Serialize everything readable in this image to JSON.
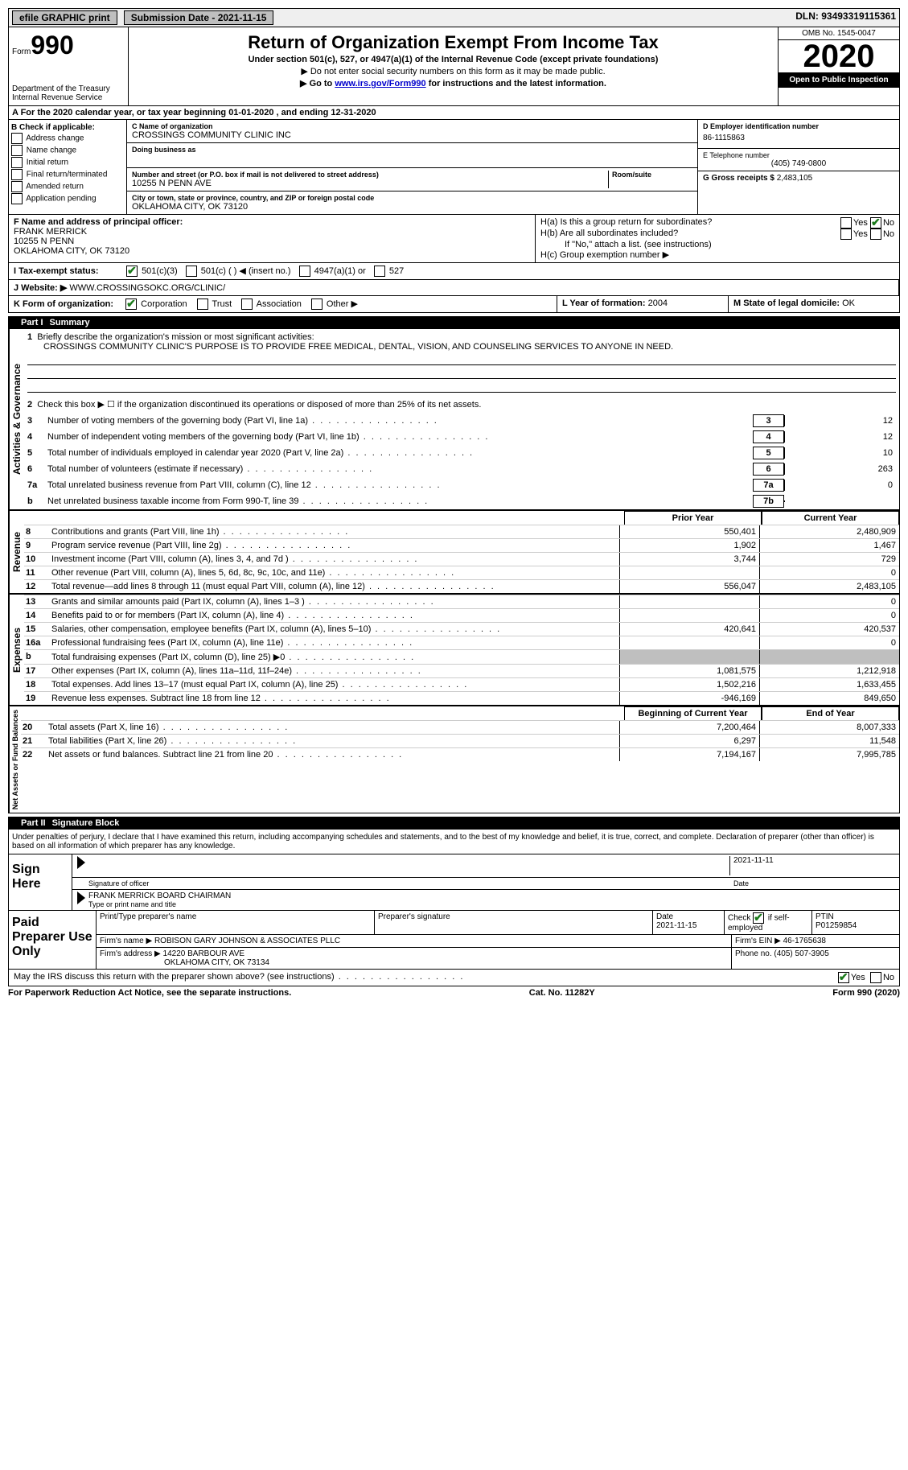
{
  "topbar": {
    "efile": "efile GRAPHIC print",
    "submission": "Submission Date - 2021-11-15",
    "dln": "DLN: 93493319115361"
  },
  "header": {
    "form": "Form",
    "num": "990",
    "dept": "Department of the Treasury\nInternal Revenue Service",
    "title": "Return of Organization Exempt From Income Tax",
    "subtitle": "Under section 501(c), 527, or 4947(a)(1) of the Internal Revenue Code (except private foundations)",
    "instr1": "▶ Do not enter social security numbers on this form as it may be made public.",
    "instr2_pre": "▶ Go to ",
    "instr2_link": "www.irs.gov/Form990",
    "instr2_post": " for instructions and the latest information.",
    "omb": "OMB No. 1545-0047",
    "year": "2020",
    "open": "Open to Public Inspection"
  },
  "row_a": "A For the 2020 calendar year, or tax year beginning 01-01-2020    , and ending 12-31-2020",
  "col_b": {
    "title": "B Check if applicable:",
    "items": [
      "Address change",
      "Name change",
      "Initial return",
      "Final return/terminated",
      "Amended return",
      "Application pending"
    ]
  },
  "col_c": {
    "name_label": "C Name of organization",
    "name": "CROSSINGS COMMUNITY CLINIC INC",
    "dba_label": "Doing business as",
    "dba": "",
    "addr_label": "Number and street (or P.O. box if mail is not delivered to street address)",
    "room_label": "Room/suite",
    "addr": "10255 N PENN AVE",
    "city_label": "City or town, state or province, country, and ZIP or foreign postal code",
    "city": "OKLAHOMA CITY, OK  73120"
  },
  "col_deg": {
    "d_label": "D Employer identification number",
    "d_val": "86-1115863",
    "e_label": "E Telephone number",
    "e_val": "(405) 749-0800",
    "g_label": "G Gross receipts $",
    "g_val": "2,483,105"
  },
  "row_f": {
    "label": "F Name and address of principal officer:",
    "name": "FRANK MERRICK",
    "addr1": "10255 N PENN",
    "addr2": "OKLAHOMA CITY, OK  73120"
  },
  "row_h": {
    "ha": "H(a)  Is this a group return for subordinates?",
    "hb": "H(b)  Are all subordinates included?",
    "hb_note": "If \"No,\" attach a list. (see instructions)",
    "hc": "H(c)  Group exemption number ▶",
    "yes": "Yes",
    "no": "No"
  },
  "row_i": {
    "label": "I  Tax-exempt status:",
    "opt1": "501(c)(3)",
    "opt2": "501(c) (  ) ◀ (insert no.)",
    "opt3": "4947(a)(1) or",
    "opt4": "527"
  },
  "row_j": {
    "label": "J  Website: ▶",
    "val": "WWW.CROSSINGSOKC.ORG/CLINIC/"
  },
  "row_l": {
    "label": "L Year of formation:",
    "val": "2004"
  },
  "row_m": {
    "label": "M State of legal domicile:",
    "val": "OK"
  },
  "row_k": {
    "label": "K Form of organization:",
    "opts": [
      "Corporation",
      "Trust",
      "Association",
      "Other ▶"
    ]
  },
  "part1": {
    "header": "Part I",
    "title": "Summary",
    "q1": "Briefly describe the organization's mission or most significant activities:",
    "mission": "CROSSINGS COMMUNITY CLINIC'S PURPOSE IS TO PROVIDE FREE MEDICAL, DENTAL, VISION, AND COUNSELING SERVICES TO ANYONE IN NEED.",
    "q2": "Check this box ▶ ☐  if the organization discontinued its operations or disposed of more than 25% of its net assets.",
    "gov_label": "Activities & Governance",
    "rev_label": "Revenue",
    "exp_label": "Expenses",
    "net_label": "Net Assets or Fund Balances",
    "lines_gov": [
      {
        "n": "3",
        "d": "Number of voting members of the governing body (Part VI, line 1a)",
        "b": "3",
        "v": "12"
      },
      {
        "n": "4",
        "d": "Number of independent voting members of the governing body (Part VI, line 1b)",
        "b": "4",
        "v": "12"
      },
      {
        "n": "5",
        "d": "Total number of individuals employed in calendar year 2020 (Part V, line 2a)",
        "b": "5",
        "v": "10"
      },
      {
        "n": "6",
        "d": "Total number of volunteers (estimate if necessary)",
        "b": "6",
        "v": "263"
      },
      {
        "n": "7a",
        "d": "Total unrelated business revenue from Part VIII, column (C), line 12",
        "b": "7a",
        "v": "0"
      },
      {
        "n": "b",
        "d": "Net unrelated business taxable income from Form 990-T, line 39",
        "b": "7b",
        "v": ""
      }
    ],
    "col_headers": {
      "prior": "Prior Year",
      "current": "Current Year",
      "begin": "Beginning of Current Year",
      "end": "End of Year"
    },
    "lines_rev": [
      {
        "n": "8",
        "d": "Contributions and grants (Part VIII, line 1h)",
        "p": "550,401",
        "c": "2,480,909"
      },
      {
        "n": "9",
        "d": "Program service revenue (Part VIII, line 2g)",
        "p": "1,902",
        "c": "1,467"
      },
      {
        "n": "10",
        "d": "Investment income (Part VIII, column (A), lines 3, 4, and 7d )",
        "p": "3,744",
        "c": "729"
      },
      {
        "n": "11",
        "d": "Other revenue (Part VIII, column (A), lines 5, 6d, 8c, 9c, 10c, and 11e)",
        "p": "",
        "c": "0"
      },
      {
        "n": "12",
        "d": "Total revenue—add lines 8 through 11 (must equal Part VIII, column (A), line 12)",
        "p": "556,047",
        "c": "2,483,105"
      }
    ],
    "lines_exp": [
      {
        "n": "13",
        "d": "Grants and similar amounts paid (Part IX, column (A), lines 1–3 )",
        "p": "",
        "c": "0"
      },
      {
        "n": "14",
        "d": "Benefits paid to or for members (Part IX, column (A), line 4)",
        "p": "",
        "c": "0"
      },
      {
        "n": "15",
        "d": "Salaries, other compensation, employee benefits (Part IX, column (A), lines 5–10)",
        "p": "420,641",
        "c": "420,537"
      },
      {
        "n": "16a",
        "d": "Professional fundraising fees (Part IX, column (A), line 11e)",
        "p": "",
        "c": "0"
      },
      {
        "n": "b",
        "d": "Total fundraising expenses (Part IX, column (D), line 25) ▶0",
        "p": "grey",
        "c": "grey"
      },
      {
        "n": "17",
        "d": "Other expenses (Part IX, column (A), lines 11a–11d, 11f–24e)",
        "p": "1,081,575",
        "c": "1,212,918"
      },
      {
        "n": "18",
        "d": "Total expenses. Add lines 13–17 (must equal Part IX, column (A), line 25)",
        "p": "1,502,216",
        "c": "1,633,455"
      },
      {
        "n": "19",
        "d": "Revenue less expenses. Subtract line 18 from line 12",
        "p": "-946,169",
        "c": "849,650"
      }
    ],
    "lines_net": [
      {
        "n": "20",
        "d": "Total assets (Part X, line 16)",
        "p": "7,200,464",
        "c": "8,007,333"
      },
      {
        "n": "21",
        "d": "Total liabilities (Part X, line 26)",
        "p": "6,297",
        "c": "11,548"
      },
      {
        "n": "22",
        "d": "Net assets or fund balances. Subtract line 21 from line 20",
        "p": "7,194,167",
        "c": "7,995,785"
      }
    ]
  },
  "part2": {
    "header": "Part II",
    "title": "Signature Block",
    "text": "Under penalties of perjury, I declare that I have examined this return, including accompanying schedules and statements, and to the best of my knowledge and belief, it is true, correct, and complete. Declaration of preparer (other than officer) is based on all information of which preparer has any knowledge.",
    "sign_here": "Sign Here",
    "sig_officer": "Signature of officer",
    "sig_date": "2021-11-11",
    "date_label": "Date",
    "officer_name": "FRANK MERRICK  BOARD CHAIRMAN",
    "type_name": "Type or print name and title",
    "paid": "Paid Preparer Use Only",
    "prep_name_label": "Print/Type preparer's name",
    "prep_sig_label": "Preparer's signature",
    "prep_date_label": "Date",
    "prep_date": "2021-11-15",
    "check_self": "Check ☑ if self-employed",
    "ptin_label": "PTIN",
    "ptin": "P01259854",
    "firm_name_label": "Firm's name    ▶",
    "firm_name": "ROBISON GARY JOHNSON & ASSOCIATES PLLC",
    "firm_ein_label": "Firm's EIN ▶",
    "firm_ein": "46-1765638",
    "firm_addr_label": "Firm's address ▶",
    "firm_addr1": "14220 BARBOUR AVE",
    "firm_addr2": "OKLAHOMA CITY, OK  73134",
    "phone_label": "Phone no.",
    "phone": "(405) 507-3905",
    "may_irs": "May the IRS discuss this return with the preparer shown above? (see instructions)"
  },
  "footer": {
    "paperwork": "For Paperwork Reduction Act Notice, see the separate instructions.",
    "cat": "Cat. No. 11282Y",
    "form": "Form 990 (2020)"
  }
}
